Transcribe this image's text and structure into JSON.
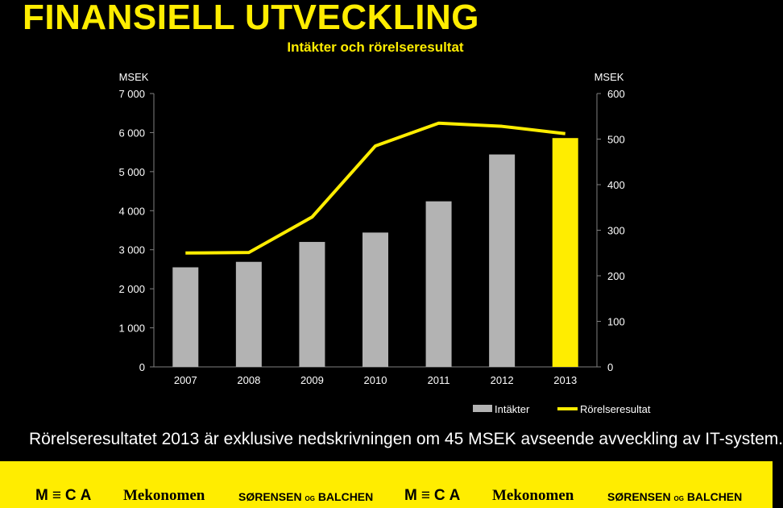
{
  "page": {
    "title": "FINANSIELL UTVECKLING",
    "footnote": "Rörelseresultatet 2013 är exklusive nedskrivningen om 45 MSEK avseende avveckling av IT-system."
  },
  "footer": {
    "logos": [
      "M≡CA",
      "Mekonomen",
      "SØRENSEN",
      "OG",
      "BALCHEN",
      "M≡CA",
      "Mekonomen",
      "SØRENSEN",
      "OG",
      "BALCHEN"
    ]
  },
  "colors": {
    "accent": "#ffed00",
    "bar": "#b3b3b3",
    "background": "#000000",
    "text": "#ffffff"
  },
  "chart_data": {
    "type": "bar",
    "title": "Intäkter och rörelseresultat",
    "categories": [
      "2007",
      "2008",
      "2009",
      "2010",
      "2011",
      "2012",
      "2013"
    ],
    "y_left": {
      "label": "MSEK",
      "min": 0,
      "max": 7000,
      "ticks": [
        "0",
        "1 000",
        "2 000",
        "3 000",
        "4 000",
        "5 000",
        "6 000",
        "7 000"
      ]
    },
    "y_right": {
      "label": "MSEK",
      "min": 0,
      "max": 600,
      "ticks": [
        "0",
        "100",
        "200",
        "300",
        "400",
        "500",
        "600"
      ]
    },
    "series": [
      {
        "name": "Intäkter",
        "kind": "bar",
        "axis": "left",
        "values": [
          2550,
          2690,
          3200,
          3440,
          4240,
          5440,
          5860
        ],
        "highlight_last": true
      },
      {
        "name": "Rörelseresultat",
        "kind": "line",
        "axis": "right",
        "values": [
          250,
          251,
          329,
          485,
          535,
          528,
          512
        ]
      }
    ],
    "legend_position": "bottom-right",
    "grid": false
  }
}
